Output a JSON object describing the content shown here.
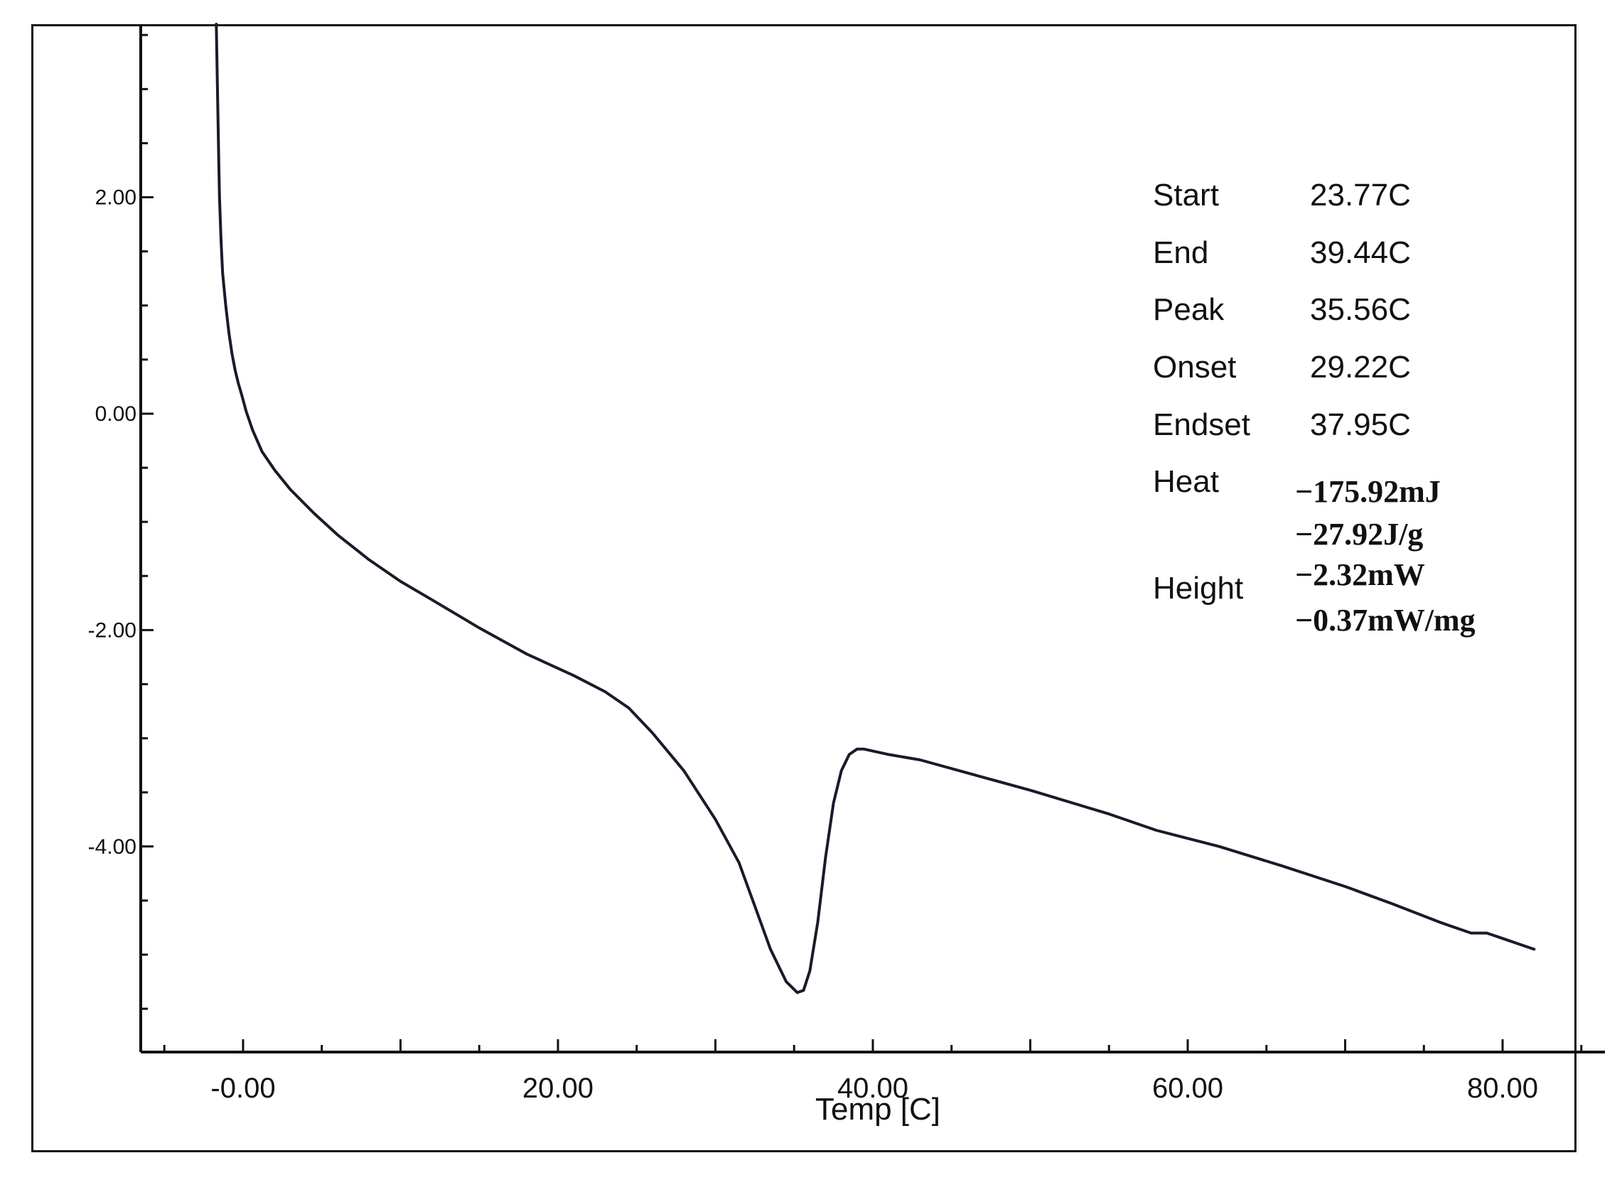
{
  "chart_data": {
    "type": "line",
    "title": "",
    "xlabel": "Temp  [C]",
    "ylabel": "",
    "xlim": [
      -6.5,
      86.5
    ],
    "ylim": [
      -5.9,
      3.6
    ],
    "x_ticks": [
      {
        "value": 0,
        "label": "-0.00"
      },
      {
        "value": 20,
        "label": "20.00"
      },
      {
        "value": 40,
        "label": "40.00"
      },
      {
        "value": 60,
        "label": "60.00"
      },
      {
        "value": 80,
        "label": "80.00"
      }
    ],
    "y_ticks": [
      {
        "value": 2,
        "label": "2.00"
      },
      {
        "value": 0,
        "label": "0.00"
      },
      {
        "value": -2,
        "label": "-2.00"
      },
      {
        "value": -4,
        "label": "-4.00"
      }
    ],
    "grid": false,
    "legend": "none",
    "series": [
      {
        "x": [
          -1.7,
          -1.65,
          -1.6,
          -1.55,
          -1.5,
          -1.4,
          -1.3,
          -1.1,
          -0.9,
          -0.7,
          -0.5,
          -0.3,
          -0.1,
          0.2,
          0.6,
          1.2,
          2,
          3,
          4.5,
          6,
          8,
          10,
          12,
          15,
          18,
          21,
          23,
          24.5,
          26,
          28,
          30,
          31.5,
          32.5,
          33.5,
          34.5,
          35.2,
          35.6,
          36,
          36.5,
          37,
          37.5,
          38,
          38.5,
          39,
          39.44,
          41,
          43,
          46,
          50,
          55,
          58,
          62,
          66,
          70,
          73,
          76,
          78,
          79,
          80,
          82
        ],
        "y": [
          3.6,
          3.2,
          2.8,
          2.4,
          2.0,
          1.6,
          1.3,
          1.0,
          0.75,
          0.55,
          0.4,
          0.28,
          0.18,
          0.02,
          -0.15,
          -0.35,
          -0.52,
          -0.7,
          -0.92,
          -1.12,
          -1.35,
          -1.55,
          -1.72,
          -1.98,
          -2.22,
          -2.42,
          -2.57,
          -2.72,
          -2.95,
          -3.3,
          -3.75,
          -4.15,
          -4.55,
          -4.95,
          -5.25,
          -5.35,
          -5.33,
          -5.15,
          -4.7,
          -4.1,
          -3.6,
          -3.3,
          -3.15,
          -3.1,
          -3.1,
          -3.15,
          -3.2,
          -3.32,
          -3.48,
          -3.7,
          -3.85,
          -4.0,
          -4.18,
          -4.37,
          -4.53,
          -4.7,
          -4.8,
          -4.8,
          -4.85,
          -4.95
        ]
      }
    ],
    "annotations": {
      "start_label": "Start",
      "start_value": "23.77C",
      "end_label": "End",
      "end_value": "39.44C",
      "peak_label": "Peak",
      "peak_value": "35.56C",
      "onset_label": "Onset",
      "onset_value": "29.22C",
      "endset_label": "Endset",
      "endset_value": "37.95C",
      "heat_label": "Heat",
      "heat_value_1": "−175.92mJ",
      "heat_value_2": "−27.92J/g",
      "height_label": "Height",
      "height_value_1": "−2.32mW",
      "height_value_2": "−0.37mW/mg"
    }
  }
}
